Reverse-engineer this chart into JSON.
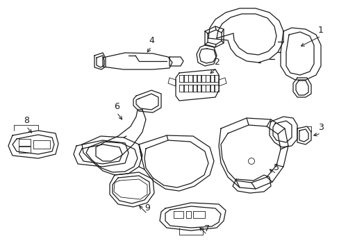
{
  "background_color": "#ffffff",
  "line_color": "#1a1a1a",
  "line_width": 0.9,
  "thin_lw": 0.6,
  "label_fontsize": 9,
  "figsize": [
    4.89,
    3.6
  ],
  "dpi": 100
}
